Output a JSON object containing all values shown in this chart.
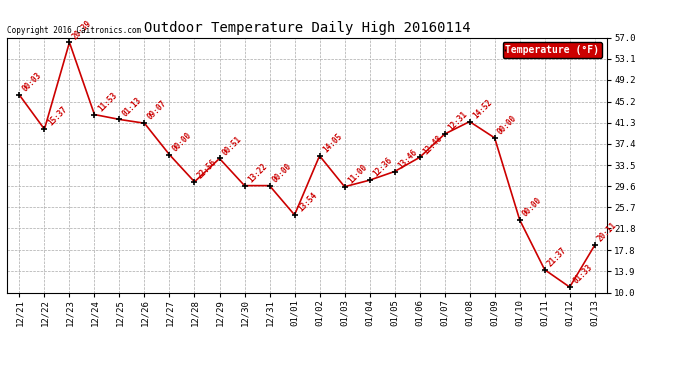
{
  "title": "Outdoor Temperature Daily High 20160114",
  "copyright": "Copyright 2016 Caitronics.com",
  "legend_label": "Temperature (°F)",
  "x_labels": [
    "12/21",
    "12/22",
    "12/23",
    "12/24",
    "12/25",
    "12/26",
    "12/27",
    "12/28",
    "12/29",
    "12/30",
    "12/31",
    "01/01",
    "01/02",
    "01/03",
    "01/04",
    "01/05",
    "01/06",
    "01/07",
    "01/08",
    "01/09",
    "01/10",
    "01/11",
    "01/12",
    "01/13"
  ],
  "y_values": [
    46.4,
    40.1,
    56.1,
    42.8,
    41.9,
    41.2,
    35.4,
    30.4,
    34.7,
    29.7,
    29.7,
    24.3,
    35.2,
    29.5,
    30.7,
    32.3,
    34.9,
    39.2,
    41.5,
    38.5,
    23.4,
    14.2,
    11.0,
    18.7
  ],
  "time_labels": [
    "00:03",
    "15:37",
    "20:39",
    "11:53",
    "01:13",
    "09:07",
    "00:00",
    "22:56",
    "00:51",
    "13:22",
    "00:00",
    "13:54",
    "14:05",
    "11:00",
    "12:36",
    "13:46",
    "12:48",
    "12:31",
    "14:52",
    "00:00",
    "00:00",
    "21:37",
    "01:33",
    "20:11"
  ],
  "y_ticks": [
    10.0,
    13.9,
    17.8,
    21.8,
    25.7,
    29.6,
    33.5,
    37.4,
    41.3,
    45.2,
    49.2,
    53.1,
    57.0
  ],
  "line_color": "#cc0000",
  "marker_color": "#000000",
  "legend_bg": "#cc0000",
  "legend_text_color": "#ffffff",
  "background_color": "#ffffff",
  "grid_color": "#aaaaaa",
  "title_color": "#000000",
  "annotation_color": "#cc0000",
  "copyright_color": "#000000"
}
